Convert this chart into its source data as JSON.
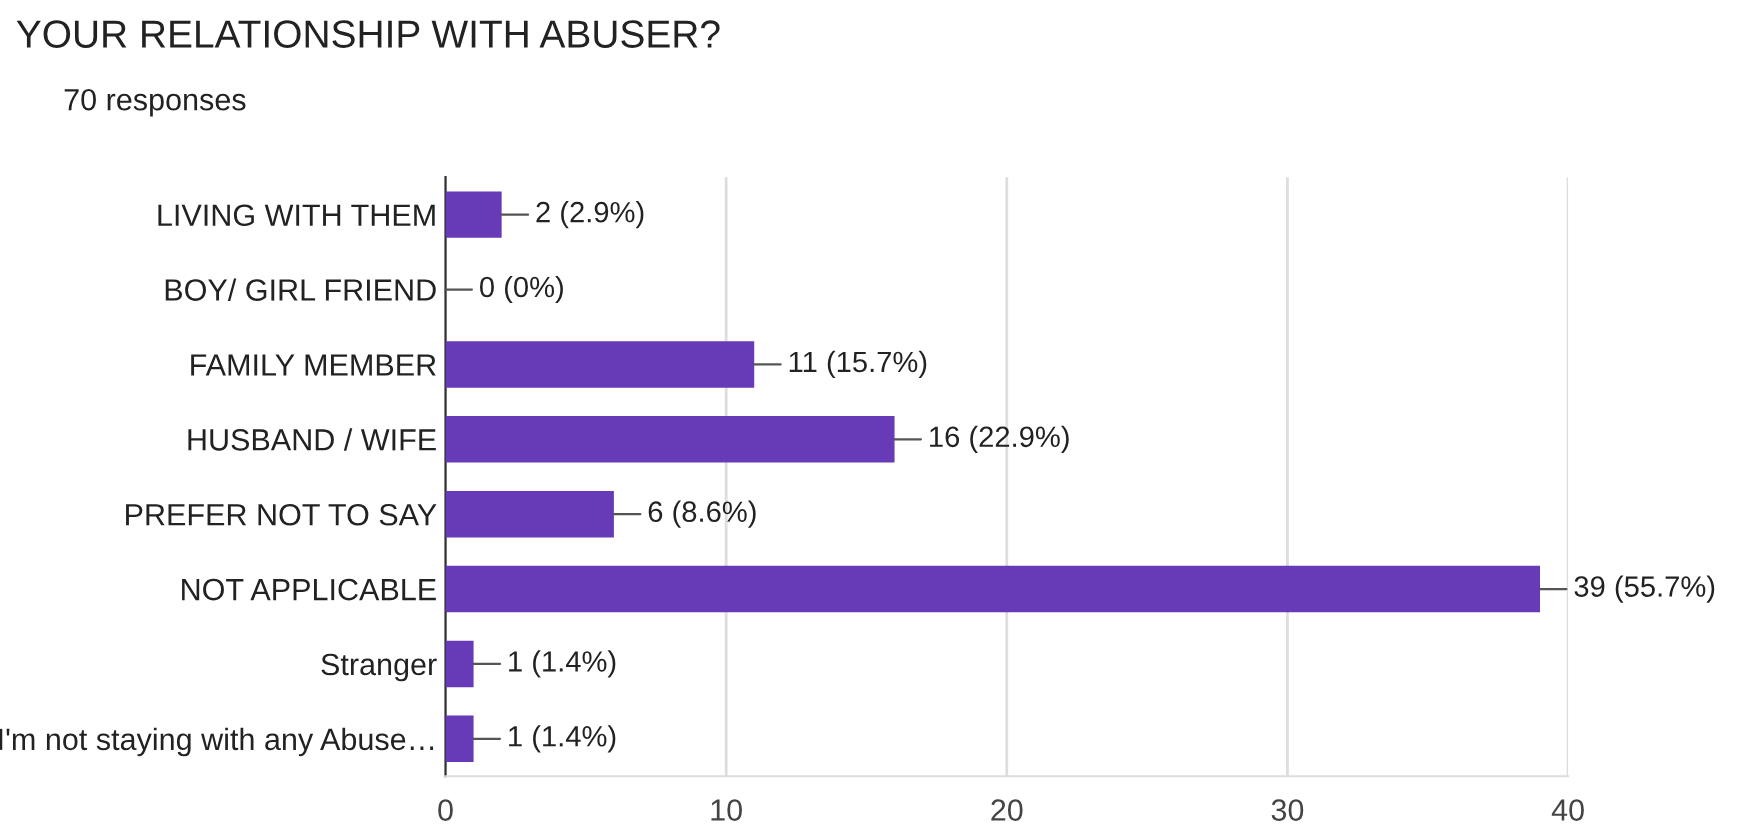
{
  "chart_data": {
    "type": "bar",
    "orientation": "horizontal",
    "title": "YOUR RELATIONSHIP WITH ABUSER?",
    "subtitle": "70 responses",
    "categories": [
      "LIVING WITH THEM",
      "BOY/ GIRL FRIEND",
      "FAMILY MEMBER",
      "HUSBAND / WIFE",
      "PREFER NOT TO SAY",
      "NOT APPLICABLE",
      "Stranger",
      "I'm not staying with any Abuse…"
    ],
    "values": [
      2,
      0,
      11,
      16,
      6,
      39,
      1,
      1
    ],
    "value_labels": [
      "2 (2.9%)",
      "0 (0%)",
      "11 (15.7%)",
      "16 (22.9%)",
      "6 (8.6%)",
      "39 (55.7%)",
      "1 (1.4%)",
      "1 (1.4%)"
    ],
    "color": "#673ab7",
    "xlim": [
      0,
      40
    ],
    "xticks": [
      0,
      10,
      20,
      30,
      40
    ],
    "grid": "x"
  }
}
